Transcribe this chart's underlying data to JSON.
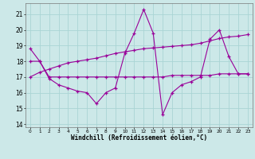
{
  "xlabel": "Windchill (Refroidissement éolien,°C)",
  "bg_color": "#cce8e8",
  "grid_color": "#aad4d4",
  "line_color": "#990099",
  "xlim": [
    -0.5,
    23.5
  ],
  "ylim": [
    13.8,
    21.7
  ],
  "yticks": [
    14,
    15,
    16,
    17,
    18,
    19,
    20,
    21
  ],
  "xticks": [
    0,
    1,
    2,
    3,
    4,
    5,
    6,
    7,
    8,
    9,
    10,
    11,
    12,
    13,
    14,
    15,
    16,
    17,
    18,
    19,
    20,
    21,
    22,
    23
  ],
  "line1_x": [
    0,
    1,
    2,
    3,
    4,
    5,
    6,
    7,
    8,
    9,
    10,
    11,
    12,
    13,
    14,
    15,
    16,
    17,
    18,
    19,
    20,
    21,
    22,
    23
  ],
  "line1_y": [
    18.8,
    18.0,
    16.9,
    16.5,
    16.3,
    16.1,
    16.0,
    15.3,
    16.0,
    16.3,
    18.5,
    19.8,
    21.3,
    19.8,
    14.6,
    16.0,
    16.5,
    16.7,
    17.0,
    19.4,
    20.0,
    18.3,
    17.2,
    17.2
  ],
  "line2_x": [
    0,
    1,
    2,
    3,
    4,
    5,
    6,
    7,
    8,
    9,
    10,
    11,
    12,
    13,
    14,
    15,
    16,
    17,
    18,
    19,
    20,
    21,
    22,
    23
  ],
  "line2_y": [
    18.0,
    18.0,
    17.0,
    17.0,
    17.0,
    17.0,
    17.0,
    17.0,
    17.0,
    17.0,
    17.0,
    17.0,
    17.0,
    17.0,
    17.0,
    17.1,
    17.1,
    17.1,
    17.1,
    17.1,
    17.2,
    17.2,
    17.2,
    17.2
  ],
  "line3_x": [
    0,
    1,
    2,
    3,
    4,
    5,
    6,
    7,
    8,
    9,
    10,
    11,
    12,
    13,
    14,
    15,
    16,
    17,
    18,
    19,
    20,
    21,
    22,
    23
  ],
  "line3_y": [
    17.0,
    17.3,
    17.5,
    17.7,
    17.9,
    18.0,
    18.1,
    18.2,
    18.35,
    18.5,
    18.6,
    18.7,
    18.8,
    18.85,
    18.9,
    18.95,
    19.0,
    19.05,
    19.15,
    19.3,
    19.45,
    19.55,
    19.6,
    19.7
  ]
}
